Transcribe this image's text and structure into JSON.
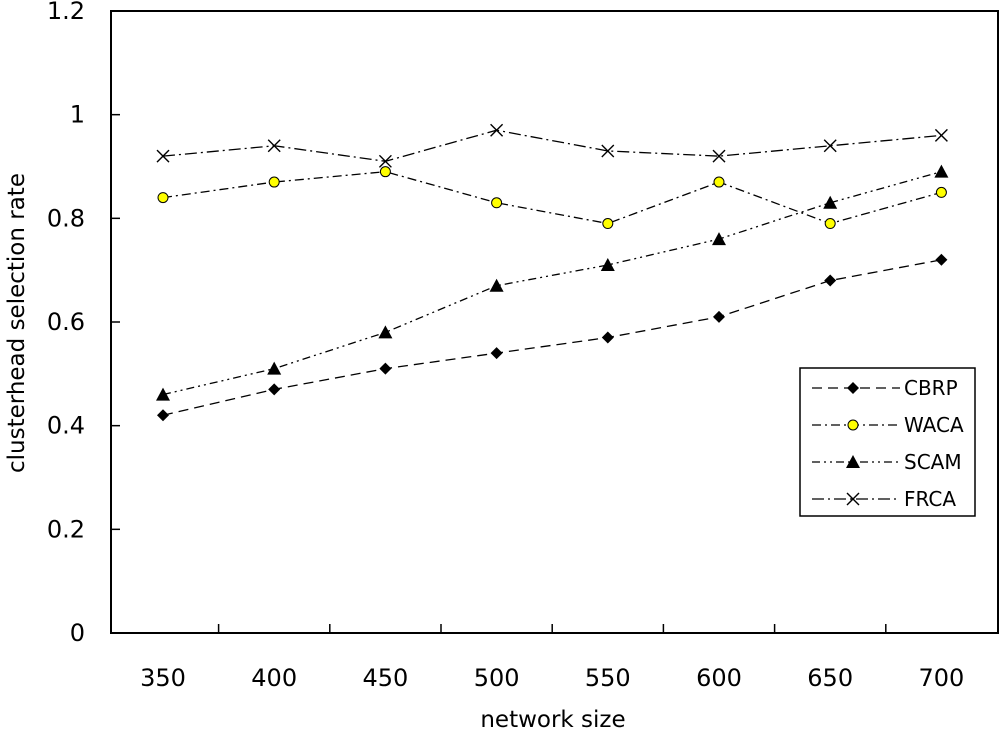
{
  "chart_data": {
    "type": "line",
    "title": "",
    "xlabel": "network size",
    "ylabel": "clusterhead selection rate",
    "x": [
      350,
      400,
      450,
      500,
      550,
      600,
      650,
      700
    ],
    "x_tick_labels": [
      "350",
      "400",
      "450",
      "500",
      "550",
      "600",
      "650",
      "700"
    ],
    "ylim": [
      0,
      1.2
    ],
    "y_ticks": [
      0,
      0.2,
      0.4,
      0.6,
      0.8,
      1,
      1.2
    ],
    "y_tick_labels": [
      "0",
      "0.2",
      "0.4",
      "0.6",
      "0.8",
      "1",
      "1.2"
    ],
    "grid": false,
    "legend_position": "right",
    "series": [
      {
        "name": "CBRP",
        "marker": "diamond",
        "values": [
          0.42,
          0.47,
          0.51,
          0.54,
          0.57,
          0.61,
          0.68,
          0.72
        ]
      },
      {
        "name": "WACA",
        "marker": "circle",
        "values": [
          0.84,
          0.87,
          0.89,
          0.83,
          0.79,
          0.87,
          0.79,
          0.85
        ]
      },
      {
        "name": "SCAM",
        "marker": "triangle",
        "values": [
          0.46,
          0.51,
          0.58,
          0.67,
          0.71,
          0.76,
          0.83,
          0.89
        ]
      },
      {
        "name": "FRCA",
        "marker": "x",
        "values": [
          0.92,
          0.94,
          0.91,
          0.97,
          0.93,
          0.92,
          0.94,
          0.96
        ]
      }
    ],
    "colors": {
      "line": "#000000",
      "circle_fill": "#ffff00"
    }
  }
}
